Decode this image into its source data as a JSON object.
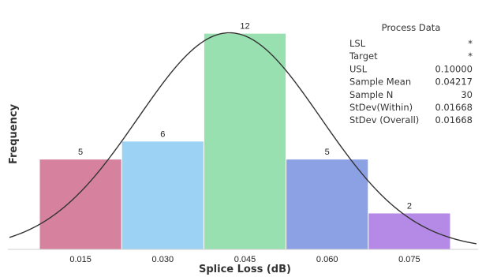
{
  "chart_data": {
    "type": "bar",
    "categories": [
      "0.015",
      "0.030",
      "0.045",
      "0.060",
      "0.075"
    ],
    "values": [
      5,
      6,
      12,
      5,
      2
    ],
    "data_labels": [
      "5",
      "6",
      "12",
      "5",
      "2"
    ],
    "bar_colors": [
      "#d6829e",
      "#9cd3f5",
      "#98e0b0",
      "#8ca0e4",
      "#b48ae6"
    ],
    "xlabel": "Splice Loss (dB)",
    "ylabel": "Frequency",
    "ylim": [
      0,
      12.6
    ],
    "grid": false,
    "overlay": {
      "type": "normal_curve",
      "mean": 0.04217,
      "stdev": 0.01668,
      "color": "#333333"
    },
    "process_data": {
      "title": "Process Data",
      "rows": [
        {
          "label": "LSL",
          "value": "*"
        },
        {
          "label": "Target",
          "value": "*"
        },
        {
          "label": "USL",
          "value": "0.10000"
        },
        {
          "label": "Sample Mean",
          "value": "0.04217"
        },
        {
          "label": "Sample N",
          "value": "30"
        },
        {
          "label": "StDev(Within)",
          "value": "0.01668"
        },
        {
          "label": "StDev (Overall)",
          "value": "0.01668"
        }
      ]
    }
  }
}
